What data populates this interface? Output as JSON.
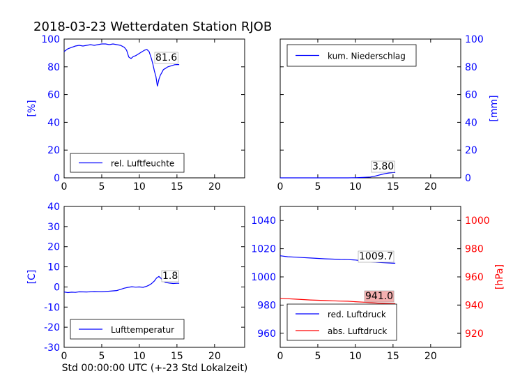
{
  "title": "2018-03-23 Wetterdaten Station RJOB",
  "xlabel": "Std 00:00:00 UTC (+-23 Std Lokalzeit)",
  "colors": {
    "blue": "#0000ff",
    "red": "#ff0000",
    "label_bg_red": "#f4b0b0"
  },
  "chart_data": [
    {
      "type": "line",
      "ylabel": "[%]",
      "xlim": [
        0,
        24
      ],
      "ylim": [
        0,
        100
      ],
      "xticks": [
        0,
        5,
        10,
        15,
        20
      ],
      "yticks": [
        0,
        20,
        40,
        60,
        80,
        100
      ],
      "legend": "lower-left",
      "series": [
        {
          "name": "rel. Luftfeuchte",
          "color": "#0000ff",
          "x": [
            0,
            0.5,
            1,
            1.5,
            2,
            2.5,
            3,
            3.5,
            4,
            4.5,
            5,
            5.5,
            6,
            6.5,
            7,
            7.5,
            8,
            8.3,
            8.6,
            8.9,
            9.2,
            9.5,
            9.8,
            10.1,
            10.4,
            10.7,
            11,
            11.3,
            11.6,
            11.8,
            12,
            12.2,
            12.4,
            12.6,
            12.8,
            13,
            13.2,
            13.5,
            13.8,
            14.1,
            14.4,
            14.7,
            15,
            15.3
          ],
          "y": [
            91,
            93,
            94,
            95,
            95.5,
            95,
            95.5,
            96,
            95.5,
            96,
            96.5,
            96.5,
            96,
            96.5,
            96,
            95.5,
            94,
            92,
            87,
            86,
            87.5,
            88,
            89,
            90,
            91,
            92,
            92.5,
            91,
            86,
            82,
            77,
            73,
            66,
            71,
            74,
            76,
            78,
            79,
            80,
            80.5,
            81,
            81.5,
            81.6,
            81.6
          ]
        }
      ],
      "annotation": "81.6"
    },
    {
      "type": "line",
      "ylabel": "[mm]",
      "xlim": [
        0,
        24
      ],
      "ylim": [
        0,
        100
      ],
      "xticks": [
        0,
        5,
        10,
        15,
        20
      ],
      "yticks": [
        0,
        20,
        40,
        60,
        80,
        100
      ],
      "legend": "top-left",
      "series": [
        {
          "name": "kum. Niederschlag",
          "color": "#0000ff",
          "x": [
            0,
            9,
            10,
            11,
            12,
            12.5,
            13,
            13.5,
            14,
            14.5,
            15,
            15.3
          ],
          "y": [
            0,
            0,
            0.1,
            0.3,
            0.6,
            1.1,
            1.8,
            2.5,
            3.1,
            3.5,
            3.8,
            3.8
          ]
        }
      ],
      "annotation": "3.80"
    },
    {
      "type": "line",
      "ylabel": "[C]",
      "xlim": [
        0,
        24
      ],
      "ylim": [
        -30,
        40
      ],
      "xticks": [
        0,
        5,
        10,
        15,
        20
      ],
      "yticks": [
        -30,
        -20,
        -10,
        0,
        10,
        20,
        30,
        40
      ],
      "legend": "lower-left",
      "series": [
        {
          "name": "Lufttemperatur",
          "color": "#0000ff",
          "x": [
            0,
            0.5,
            1,
            1.5,
            2,
            3,
            4,
            5,
            6,
            7,
            7.5,
            8,
            8.5,
            9,
            9.5,
            10,
            10.5,
            11,
            11.3,
            11.6,
            12,
            12.3,
            12.6,
            12.9,
            13.2,
            13.5,
            14,
            14.5,
            15,
            15.3
          ],
          "y": [
            -2.5,
            -2.8,
            -2.6,
            -2.7,
            -2.4,
            -2.5,
            -2.3,
            -2.4,
            -2.1,
            -1.8,
            -1.2,
            -0.6,
            -0.2,
            0.1,
            -0.1,
            0.0,
            -0.2,
            0.4,
            0.9,
            1.6,
            3.0,
            4.5,
            5.2,
            4.2,
            2.8,
            2.2,
            1.9,
            1.7,
            1.8,
            1.8
          ]
        }
      ],
      "annotation": "1.8"
    },
    {
      "type": "line",
      "ylabel": "[hPa]",
      "xlim": [
        0,
        24
      ],
      "ylim": [
        950,
        1050
      ],
      "ylim_right": [
        910,
        1010
      ],
      "xticks": [
        0,
        5,
        10,
        15,
        20
      ],
      "yticks": [
        960,
        980,
        1000,
        1020,
        1040
      ],
      "yticks_right": [
        920,
        940,
        960,
        980,
        1000
      ],
      "legend": "lower-left",
      "series": [
        {
          "name": "red. Luftdruck",
          "color": "#0000ff",
          "axis": "left",
          "x": [
            0,
            1,
            2,
            3,
            4,
            5,
            6,
            7,
            8,
            9,
            10,
            11,
            12,
            13,
            14,
            15,
            15.3
          ],
          "y": [
            1015,
            1014.3,
            1014,
            1013.7,
            1013.4,
            1013.1,
            1012.8,
            1012.6,
            1012.4,
            1012.3,
            1012.0,
            1011.4,
            1010.7,
            1010.3,
            1010.0,
            1009.7,
            1009.7
          ]
        },
        {
          "name": "abs. Luftdruck",
          "color": "#ff0000",
          "axis": "right",
          "x": [
            0,
            1,
            2,
            3,
            4,
            5,
            6,
            7,
            8,
            9,
            10,
            11,
            12,
            13,
            14,
            15,
            15.3
          ],
          "y": [
            944.8,
            944.5,
            944.2,
            943.9,
            943.6,
            943.4,
            943.2,
            943.0,
            942.8,
            942.7,
            942.4,
            942.1,
            941.7,
            941.4,
            941.2,
            941.0,
            941.0
          ]
        }
      ],
      "annotation": "1009.7",
      "annotation_right": "941.0"
    }
  ]
}
